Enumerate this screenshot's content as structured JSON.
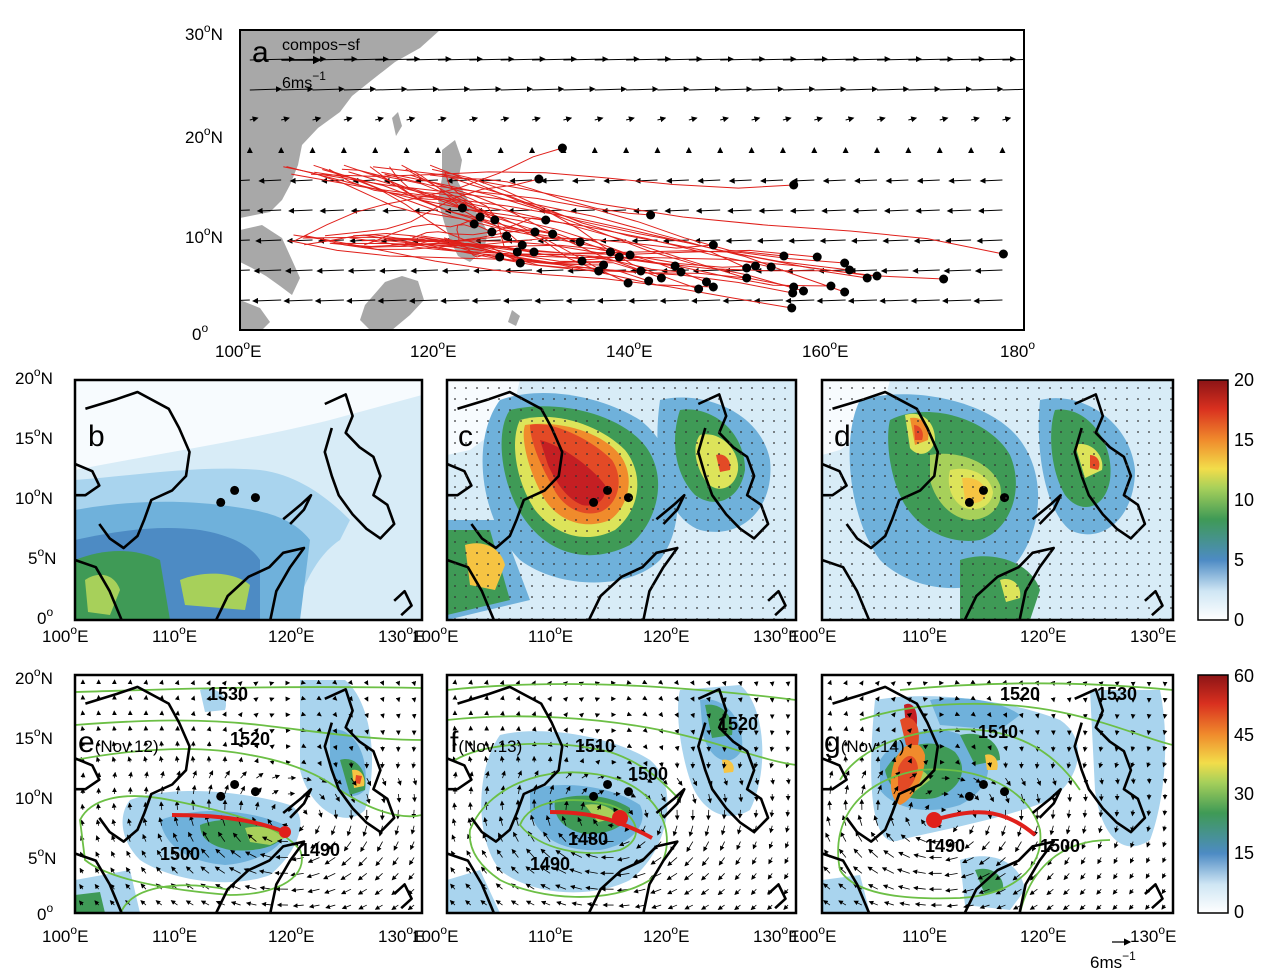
{
  "chart_data": [
    {
      "panel": "a",
      "type": "scatter",
      "label": "a",
      "legend_text": "compos−sf",
      "vector_ref": "6ms",
      "vector_ref_sup": "−1",
      "xticks": [
        "100",
        "120",
        "140",
        "160",
        "180"
      ],
      "yticks": [
        "0",
        "10",
        "20",
        "30"
      ],
      "xlim": [
        100,
        180
      ],
      "ylim": [
        0,
        30
      ],
      "genesis_points": [
        [
          132.9,
          18.2
        ],
        [
          156.5,
          14.5
        ],
        [
          130.5,
          15.1
        ],
        [
          122.7,
          12.2
        ],
        [
          124.5,
          11.3
        ],
        [
          126,
          11
        ],
        [
          131.2,
          11
        ],
        [
          141.9,
          11.5
        ],
        [
          123.9,
          10.6
        ],
        [
          125.7,
          9.8
        ],
        [
          127.2,
          9.4
        ],
        [
          130.1,
          9.8
        ],
        [
          131.9,
          9.6
        ],
        [
          134.7,
          8.8
        ],
        [
          148.3,
          8.5
        ],
        [
          128.8,
          8.5
        ],
        [
          126.5,
          7.3
        ],
        [
          128.3,
          7.8
        ],
        [
          130,
          7.8
        ],
        [
          137.8,
          7.8
        ],
        [
          138.7,
          7.3
        ],
        [
          139.8,
          7.5
        ],
        [
          144.4,
          6.4
        ],
        [
          155.5,
          7.4
        ],
        [
          161.7,
          6.7
        ],
        [
          151.7,
          6.2
        ],
        [
          152.6,
          6.4
        ],
        [
          154.2,
          6.3
        ],
        [
          158.9,
          7.3
        ],
        [
          162.2,
          6
        ],
        [
          171.8,
          5.1
        ],
        [
          177.9,
          7.6
        ],
        [
          137.1,
          6.5
        ],
        [
          139.6,
          4.7
        ],
        [
          141.7,
          4.9
        ],
        [
          146.8,
          4.1
        ],
        [
          148.3,
          4.3
        ],
        [
          147.6,
          4.8
        ],
        [
          151.7,
          5.2
        ],
        [
          156.5,
          4.3
        ],
        [
          156.4,
          3.7
        ],
        [
          157.5,
          3.9
        ],
        [
          160.3,
          4.4
        ],
        [
          161.7,
          3.8
        ],
        [
          164,
          5.2
        ],
        [
          165,
          5.4
        ],
        [
          156.3,
          2.2
        ],
        [
          128.6,
          6.7
        ],
        [
          134.9,
          6.9
        ],
        [
          136.6,
          5.9
        ],
        [
          140.9,
          5.9
        ],
        [
          143,
          5.2
        ],
        [
          145,
          5.8
        ]
      ],
      "colors": {
        "track": "#e0201b",
        "land": "#a8a8a8",
        "points": "#000000"
      }
    },
    {
      "panel": "b",
      "type": "heatmap",
      "label": "b",
      "xticks": [
        "100",
        "110",
        "120",
        "130"
      ],
      "yticks": [
        "0",
        "5",
        "10",
        "15",
        "20"
      ]
    },
    {
      "panel": "c",
      "type": "heatmap",
      "label": "c",
      "xticks": [
        "100",
        "110",
        "120",
        "130"
      ]
    },
    {
      "panel": "d",
      "type": "heatmap",
      "label": "d",
      "xticks": [
        "100",
        "110",
        "120",
        "130"
      ],
      "colorbar_ticks": [
        "0",
        "5",
        "10",
        "15",
        "20"
      ]
    },
    {
      "panel": "e",
      "type": "heatmap",
      "label": "e",
      "date": "(Nov.12)",
      "xticks": [
        "100",
        "110",
        "120",
        "130"
      ],
      "yticks": [
        "0",
        "5",
        "10",
        "15",
        "20"
      ],
      "contour_labels": [
        "1530",
        "1520",
        "1500",
        "1490"
      ]
    },
    {
      "panel": "f",
      "type": "heatmap",
      "label": "f",
      "date": "(Nov.13)",
      "xticks": [
        "100",
        "110",
        "120",
        "130"
      ],
      "contour_labels": [
        "1510",
        "1500",
        "1520",
        "1480",
        "1490"
      ]
    },
    {
      "panel": "g",
      "type": "heatmap",
      "label": "g",
      "date": "(Nov.14)",
      "xticks": [
        "100",
        "110",
        "120",
        "130"
      ],
      "contour_labels": [
        "1520",
        "1530",
        "1510",
        "1490",
        "1500"
      ],
      "colorbar_ticks": [
        "0",
        "15",
        "30",
        "45",
        "60"
      ],
      "vector_ref": "6ms",
      "vector_ref_sup": "−1"
    }
  ],
  "colors": {
    "scale": [
      "#ffffff",
      "#d8ecf7",
      "#a9d4ee",
      "#6fb1db",
      "#4d8bc4",
      "#3f9a56",
      "#6dba5b",
      "#a7d05a",
      "#dde45a",
      "#f6c442",
      "#f08b2c",
      "#e34a26",
      "#c51f23",
      "#931416"
    ],
    "contour_green": "#6cbf45",
    "track_red": "#e0201b"
  }
}
